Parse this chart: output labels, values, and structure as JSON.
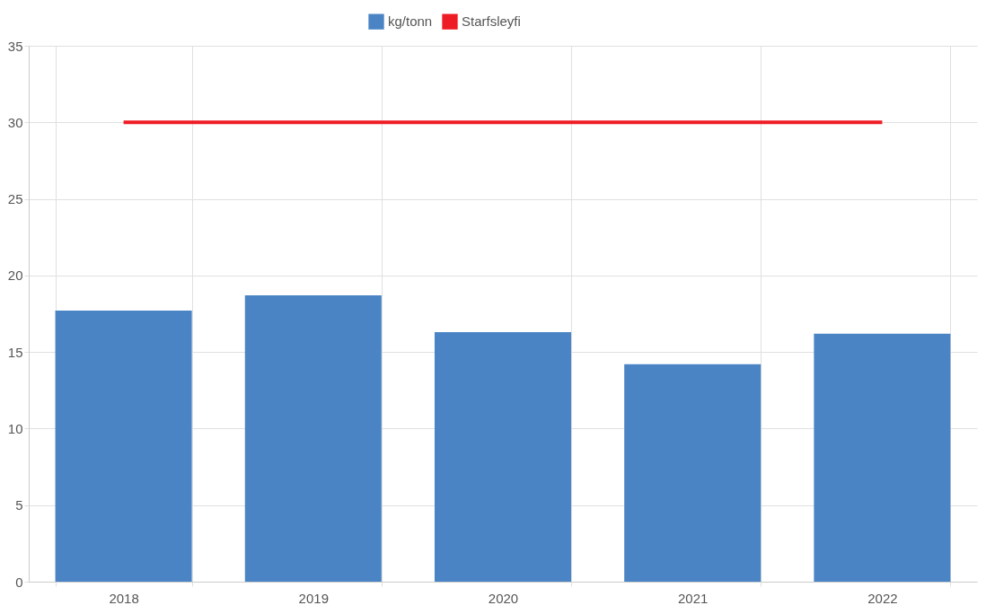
{
  "chart_data": {
    "type": "bar",
    "categories": [
      "2018",
      "2019",
      "2020",
      "2021",
      "2022"
    ],
    "series": [
      {
        "name": "kg/tonn",
        "color": "#4a84c4",
        "values": [
          17.7,
          18.7,
          16.3,
          14.2,
          16.2
        ]
      },
      {
        "name": "Starfsleyfi",
        "type": "line",
        "color": "#ee1c25",
        "values": [
          30,
          30,
          30,
          30,
          30
        ]
      }
    ],
    "ylim": [
      0,
      35
    ],
    "yticks": [
      0,
      5,
      10,
      15,
      20,
      25,
      30,
      35
    ],
    "grid": true,
    "legend": "top"
  }
}
